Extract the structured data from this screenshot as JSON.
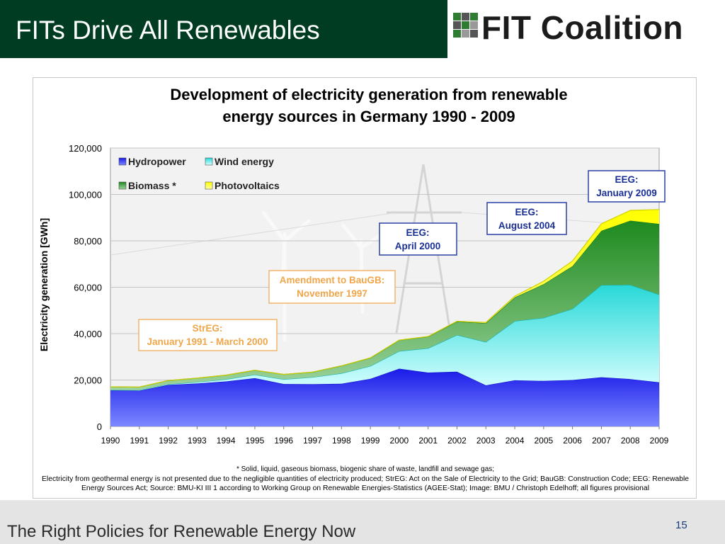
{
  "slide": {
    "title": "FITs Drive All Renewables",
    "logo_text": "FIT Coalition",
    "footer_text": "The Right Policies for Renewable Energy Now",
    "page_number": "15"
  },
  "chart_data": {
    "type": "area",
    "stacked": true,
    "title": "Development of electricity generation from renewable energy sources in Germany 1990 - 2009",
    "title_lines": [
      "Development of electricity generation from renewable",
      "energy sources in Germany 1990 - 2009"
    ],
    "ylabel": "Electricity generation [GWh]",
    "xlabel": "",
    "ylim": [
      0,
      120000
    ],
    "yticks": [
      0,
      20000,
      40000,
      60000,
      80000,
      100000,
      120000
    ],
    "ytick_labels": [
      "0",
      "20,000",
      "40,000",
      "60,000",
      "80,000",
      "100,000",
      "120,000"
    ],
    "grid": true,
    "legend_position": "top-left",
    "x": [
      "1990",
      "1991",
      "1992",
      "1993",
      "1994",
      "1995",
      "1996",
      "1997",
      "1998",
      "1999",
      "2000",
      "2001",
      "2002",
      "2003",
      "2004",
      "2005",
      "2006",
      "2007",
      "2008",
      "2009"
    ],
    "series": [
      {
        "name": "Hydropower",
        "color": "#2a3ee8",
        "values": [
          15600,
          15400,
          17900,
          18500,
          19400,
          20800,
          18300,
          18200,
          18400,
          20500,
          24900,
          23200,
          23600,
          17700,
          19900,
          19600,
          20000,
          21200,
          20400,
          19000
        ]
      },
      {
        "name": "Wind energy",
        "color": "#40dcdc",
        "values": [
          70,
          250,
          280,
          600,
          900,
          1500,
          2000,
          3000,
          4500,
          5500,
          7550,
          10500,
          15800,
          18700,
          25500,
          27200,
          30700,
          39700,
          40600,
          37800
        ]
      },
      {
        "name": "Biomass *",
        "color": "#2f9a2f",
        "values": [
          1400,
          1300,
          1600,
          1700,
          1800,
          1900,
          2100,
          2200,
          3200,
          3500,
          4700,
          5000,
          5800,
          8100,
          10200,
          14500,
          18400,
          23400,
          27700,
          30500
        ]
      },
      {
        "name": "Photovoltaics",
        "color": "#ffff00",
        "values": [
          1,
          2,
          3,
          6,
          8,
          11,
          16,
          26,
          32,
          42,
          64,
          76,
          162,
          313,
          556,
          1282,
          2220,
          3075,
          4420,
          6200
        ]
      }
    ],
    "annotations": [
      {
        "line1": "StrEG:",
        "line2": "January 1991 - March 2000"
      },
      {
        "line1": "Amendment to BauGB:",
        "line2": "November 1997"
      },
      {
        "line1": "EEG:",
        "line2": "April 2000"
      },
      {
        "line1": "EEG:",
        "line2": "August 2004"
      },
      {
        "line1": "EEG:",
        "line2": "January 2009"
      }
    ],
    "footnotes": [
      "* Solid, liquid, gaseous biomass, biogenic share of waste, landfill and sewage gas;",
      "Electricity from geothermal energy is not presented due to the negligible quantities of electricity produced; StrEG: Act on the Sale of Electricity to the Grid; BauGB: Construction Code; EEG: Renewable",
      "Energy Sources Act; Source: BMU-KI III 1 according to Working Group on Renewable Energies-Statistics (AGEE-Stat); Image: BMU / Christoph Edelhoff; all figures provisional"
    ]
  }
}
